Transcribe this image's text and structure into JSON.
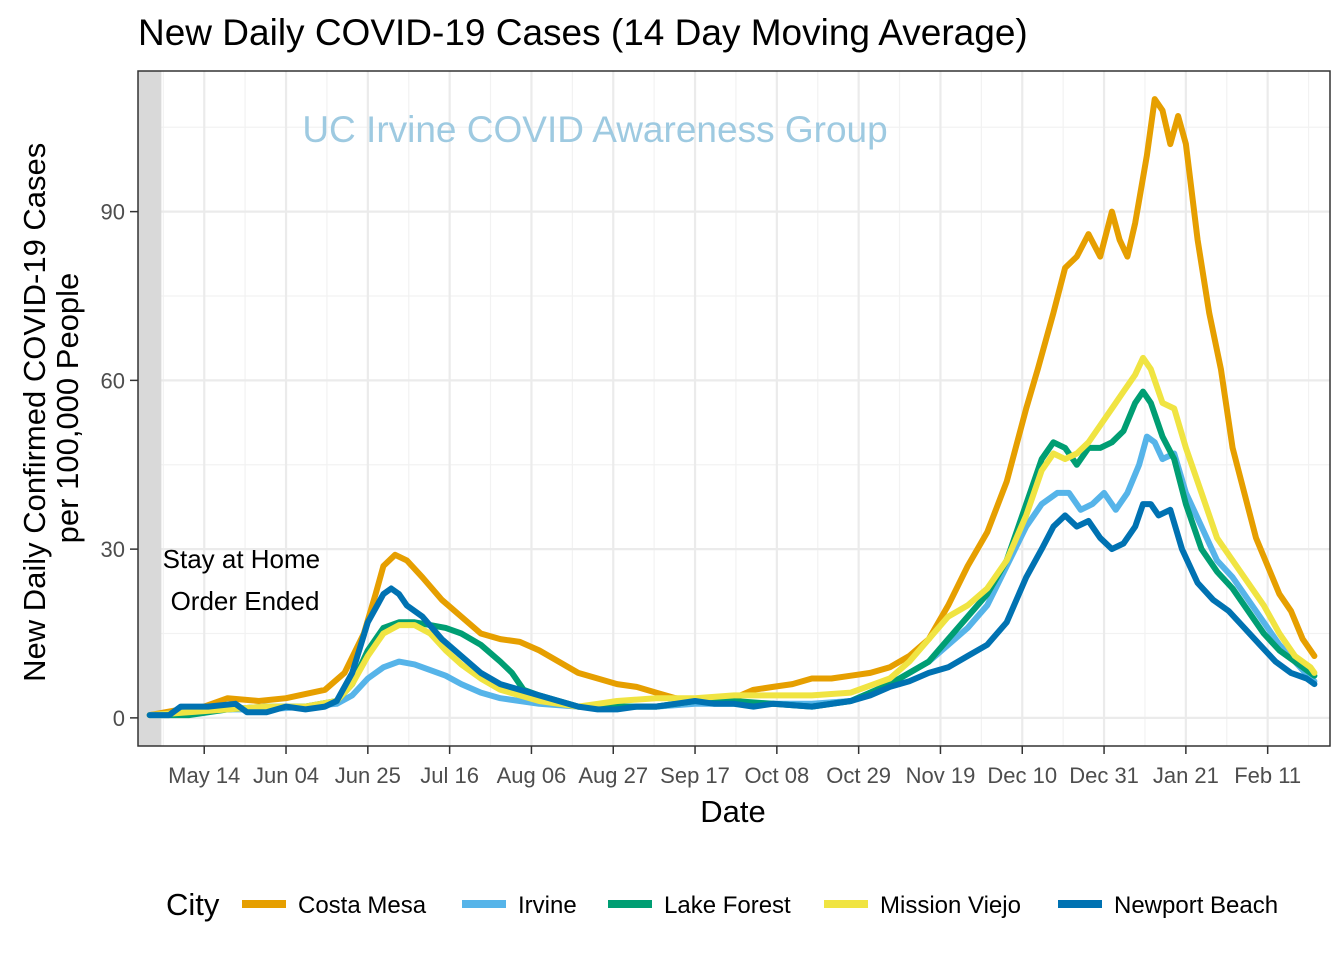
{
  "chart_data": {
    "type": "line",
    "title": "New Daily COVID-19 Cases (14 Day Moving Average)",
    "xlabel": "Date",
    "ylabel_lines": [
      "New Daily Confirmed COVID-19 Cases",
      "per 100,000 People"
    ],
    "watermark": "UC Irvine COVID Awareness Group",
    "annotation_lines": [
      "Stay at Home",
      "Order Ended"
    ],
    "x_ticks": [
      {
        "day": 14,
        "label": "May 14"
      },
      {
        "day": 35,
        "label": "Jun 04"
      },
      {
        "day": 56,
        "label": "Jun 25"
      },
      {
        "day": 77,
        "label": "Jul 16"
      },
      {
        "day": 98,
        "label": "Aug 06"
      },
      {
        "day": 119,
        "label": "Aug 27"
      },
      {
        "day": 140,
        "label": "Sep 17"
      },
      {
        "day": 161,
        "label": "Oct 08"
      },
      {
        "day": 182,
        "label": "Oct 29"
      },
      {
        "day": 203,
        "label": "Nov 19"
      },
      {
        "day": 224,
        "label": "Dec 10"
      },
      {
        "day": 245,
        "label": "Dec 31"
      },
      {
        "day": 266,
        "label": "Jan 21"
      },
      {
        "day": 287,
        "label": "Feb 11"
      }
    ],
    "x_range_days": [
      -3,
      303
    ],
    "shaded_until_day": 3,
    "y_ticks": [
      0,
      30,
      60,
      90
    ],
    "ylim": [
      -5,
      115
    ],
    "grid": true,
    "legend": {
      "title": "City",
      "position": "bottom"
    },
    "series": [
      {
        "name": "Costa Mesa",
        "color": "#E69F00",
        "points": [
          [
            0,
            0.5
          ],
          [
            8,
            1.5
          ],
          [
            14,
            2
          ],
          [
            20,
            3.5
          ],
          [
            28,
            3
          ],
          [
            35,
            3.5
          ],
          [
            45,
            5
          ],
          [
            50,
            8
          ],
          [
            55,
            15
          ],
          [
            58,
            22
          ],
          [
            60,
            27
          ],
          [
            63,
            29
          ],
          [
            66,
            28
          ],
          [
            70,
            25
          ],
          [
            75,
            21
          ],
          [
            80,
            18
          ],
          [
            85,
            15
          ],
          [
            90,
            14
          ],
          [
            95,
            13.5
          ],
          [
            100,
            12
          ],
          [
            105,
            10
          ],
          [
            110,
            8
          ],
          [
            115,
            7
          ],
          [
            120,
            6
          ],
          [
            125,
            5.5
          ],
          [
            130,
            4.5
          ],
          [
            135,
            3.5
          ],
          [
            140,
            3
          ],
          [
            145,
            3
          ],
          [
            150,
            3.5
          ],
          [
            155,
            5
          ],
          [
            160,
            5.5
          ],
          [
            165,
            6
          ],
          [
            170,
            7
          ],
          [
            175,
            7
          ],
          [
            180,
            7.5
          ],
          [
            185,
            8
          ],
          [
            190,
            9
          ],
          [
            195,
            11
          ],
          [
            200,
            14
          ],
          [
            205,
            20
          ],
          [
            210,
            27
          ],
          [
            215,
            33
          ],
          [
            220,
            42
          ],
          [
            225,
            55
          ],
          [
            228,
            62
          ],
          [
            232,
            72
          ],
          [
            235,
            80
          ],
          [
            238,
            82
          ],
          [
            241,
            86
          ],
          [
            244,
            82
          ],
          [
            247,
            90
          ],
          [
            249,
            85
          ],
          [
            251,
            82
          ],
          [
            253,
            88
          ],
          [
            256,
            100
          ],
          [
            258,
            110
          ],
          [
            260,
            108
          ],
          [
            262,
            102
          ],
          [
            264,
            107
          ],
          [
            266,
            102
          ],
          [
            269,
            85
          ],
          [
            272,
            72
          ],
          [
            275,
            62
          ],
          [
            278,
            48
          ],
          [
            281,
            40
          ],
          [
            284,
            32
          ],
          [
            287,
            27
          ],
          [
            290,
            22
          ],
          [
            293,
            19
          ],
          [
            296,
            14
          ],
          [
            299,
            11
          ]
        ]
      },
      {
        "name": "Irvine",
        "color": "#56B4E9",
        "points": [
          [
            0,
            0.5
          ],
          [
            10,
            1
          ],
          [
            20,
            1.5
          ],
          [
            30,
            1.5
          ],
          [
            40,
            2
          ],
          [
            48,
            2.5
          ],
          [
            52,
            4
          ],
          [
            56,
            7
          ],
          [
            60,
            9
          ],
          [
            64,
            10
          ],
          [
            68,
            9.5
          ],
          [
            72,
            8.5
          ],
          [
            76,
            7.5
          ],
          [
            80,
            6
          ],
          [
            85,
            4.5
          ],
          [
            90,
            3.5
          ],
          [
            95,
            3
          ],
          [
            100,
            2.5
          ],
          [
            110,
            2
          ],
          [
            120,
            2
          ],
          [
            130,
            2
          ],
          [
            140,
            2.5
          ],
          [
            150,
            2.5
          ],
          [
            160,
            2.5
          ],
          [
            170,
            2.5
          ],
          [
            180,
            3
          ],
          [
            190,
            6
          ],
          [
            200,
            10
          ],
          [
            205,
            13
          ],
          [
            210,
            16
          ],
          [
            215,
            20
          ],
          [
            220,
            27
          ],
          [
            225,
            34
          ],
          [
            229,
            38
          ],
          [
            233,
            40
          ],
          [
            236,
            40
          ],
          [
            239,
            37
          ],
          [
            242,
            38
          ],
          [
            245,
            40
          ],
          [
            248,
            37
          ],
          [
            251,
            40
          ],
          [
            254,
            45
          ],
          [
            256,
            50
          ],
          [
            258,
            49
          ],
          [
            260,
            46
          ],
          [
            263,
            47
          ],
          [
            266,
            40
          ],
          [
            270,
            34
          ],
          [
            274,
            28
          ],
          [
            278,
            25
          ],
          [
            282,
            21
          ],
          [
            286,
            17
          ],
          [
            290,
            13
          ],
          [
            294,
            10
          ],
          [
            298,
            7
          ],
          [
            299,
            6.5
          ]
        ]
      },
      {
        "name": "Lake Forest",
        "color": "#009E73",
        "points": [
          [
            0,
            0.5
          ],
          [
            10,
            0.5
          ],
          [
            20,
            1.5
          ],
          [
            30,
            2
          ],
          [
            40,
            2
          ],
          [
            48,
            3
          ],
          [
            52,
            6
          ],
          [
            56,
            12
          ],
          [
            60,
            16
          ],
          [
            64,
            17
          ],
          [
            68,
            17
          ],
          [
            72,
            16.5
          ],
          [
            76,
            16
          ],
          [
            80,
            15
          ],
          [
            85,
            13
          ],
          [
            90,
            10
          ],
          [
            93,
            8
          ],
          [
            96,
            5
          ],
          [
            100,
            4
          ],
          [
            105,
            3
          ],
          [
            110,
            2
          ],
          [
            120,
            2
          ],
          [
            130,
            2
          ],
          [
            140,
            3
          ],
          [
            150,
            3
          ],
          [
            160,
            2.5
          ],
          [
            170,
            2
          ],
          [
            180,
            3
          ],
          [
            190,
            6
          ],
          [
            195,
            8
          ],
          [
            200,
            10
          ],
          [
            205,
            14
          ],
          [
            210,
            18
          ],
          [
            215,
            22
          ],
          [
            220,
            28
          ],
          [
            225,
            38
          ],
          [
            229,
            46
          ],
          [
            232,
            49
          ],
          [
            235,
            48
          ],
          [
            238,
            45
          ],
          [
            241,
            48
          ],
          [
            244,
            48
          ],
          [
            247,
            49
          ],
          [
            250,
            51
          ],
          [
            253,
            56
          ],
          [
            255,
            58
          ],
          [
            257,
            56
          ],
          [
            260,
            50
          ],
          [
            263,
            46
          ],
          [
            266,
            38
          ],
          [
            270,
            30
          ],
          [
            274,
            26
          ],
          [
            278,
            23
          ],
          [
            282,
            19
          ],
          [
            286,
            15
          ],
          [
            290,
            12
          ],
          [
            294,
            10
          ],
          [
            298,
            8
          ],
          [
            299,
            7.5
          ]
        ]
      },
      {
        "name": "Mission Viejo",
        "color": "#F0E442",
        "points": [
          [
            0,
            0.5
          ],
          [
            10,
            1
          ],
          [
            20,
            1.5
          ],
          [
            30,
            2
          ],
          [
            40,
            2
          ],
          [
            48,
            3
          ],
          [
            52,
            6
          ],
          [
            56,
            11
          ],
          [
            60,
            15
          ],
          [
            64,
            16.5
          ],
          [
            68,
            16.5
          ],
          [
            72,
            15
          ],
          [
            76,
            12
          ],
          [
            80,
            9.5
          ],
          [
            85,
            7
          ],
          [
            90,
            5
          ],
          [
            95,
            4
          ],
          [
            100,
            3
          ],
          [
            105,
            2.5
          ],
          [
            110,
            2
          ],
          [
            115,
            2.5
          ],
          [
            120,
            3
          ],
          [
            130,
            3.5
          ],
          [
            140,
            3.5
          ],
          [
            150,
            4
          ],
          [
            160,
            4
          ],
          [
            170,
            4
          ],
          [
            180,
            4.5
          ],
          [
            190,
            7
          ],
          [
            195,
            10
          ],
          [
            200,
            14
          ],
          [
            205,
            18
          ],
          [
            210,
            20
          ],
          [
            215,
            23
          ],
          [
            220,
            28
          ],
          [
            225,
            36
          ],
          [
            229,
            44
          ],
          [
            232,
            47
          ],
          [
            235,
            46
          ],
          [
            238,
            47
          ],
          [
            241,
            49
          ],
          [
            244,
            52
          ],
          [
            247,
            55
          ],
          [
            250,
            58
          ],
          [
            253,
            61
          ],
          [
            255,
            64
          ],
          [
            257,
            62
          ],
          [
            260,
            56
          ],
          [
            263,
            55
          ],
          [
            266,
            48
          ],
          [
            270,
            40
          ],
          [
            274,
            32
          ],
          [
            278,
            28
          ],
          [
            282,
            24
          ],
          [
            286,
            20
          ],
          [
            290,
            15
          ],
          [
            294,
            11
          ],
          [
            298,
            9
          ],
          [
            299,
            8
          ]
        ]
      },
      {
        "name": "Newport Beach",
        "color": "#0072B2",
        "points": [
          [
            0,
            0.5
          ],
          [
            5,
            0.5
          ],
          [
            8,
            2
          ],
          [
            15,
            2
          ],
          [
            22,
            2.5
          ],
          [
            25,
            1
          ],
          [
            30,
            1
          ],
          [
            35,
            2
          ],
          [
            40,
            1.5
          ],
          [
            45,
            2
          ],
          [
            48,
            3
          ],
          [
            52,
            8
          ],
          [
            56,
            17
          ],
          [
            60,
            22
          ],
          [
            62,
            23
          ],
          [
            64,
            22
          ],
          [
            66,
            20
          ],
          [
            70,
            18
          ],
          [
            75,
            14
          ],
          [
            80,
            11
          ],
          [
            85,
            8
          ],
          [
            90,
            6
          ],
          [
            95,
            5
          ],
          [
            100,
            4
          ],
          [
            105,
            3
          ],
          [
            110,
            2
          ],
          [
            115,
            1.5
          ],
          [
            120,
            1.5
          ],
          [
            125,
            2
          ],
          [
            130,
            2
          ],
          [
            135,
            2.5
          ],
          [
            140,
            3
          ],
          [
            145,
            2.5
          ],
          [
            150,
            2.5
          ],
          [
            155,
            2
          ],
          [
            160,
            2.5
          ],
          [
            170,
            2
          ],
          [
            180,
            3
          ],
          [
            185,
            4
          ],
          [
            190,
            5.5
          ],
          [
            195,
            6.5
          ],
          [
            200,
            8
          ],
          [
            205,
            9
          ],
          [
            210,
            11
          ],
          [
            215,
            13
          ],
          [
            220,
            17
          ],
          [
            225,
            25
          ],
          [
            229,
            30
          ],
          [
            232,
            34
          ],
          [
            235,
            36
          ],
          [
            238,
            34
          ],
          [
            241,
            35
          ],
          [
            244,
            32
          ],
          [
            247,
            30
          ],
          [
            250,
            31
          ],
          [
            253,
            34
          ],
          [
            255,
            38
          ],
          [
            257,
            38
          ],
          [
            259,
            36
          ],
          [
            262,
            37
          ],
          [
            265,
            30
          ],
          [
            269,
            24
          ],
          [
            273,
            21
          ],
          [
            277,
            19
          ],
          [
            281,
            16
          ],
          [
            285,
            13
          ],
          [
            289,
            10
          ],
          [
            293,
            8
          ],
          [
            297,
            7
          ],
          [
            299,
            6
          ]
        ]
      }
    ]
  }
}
